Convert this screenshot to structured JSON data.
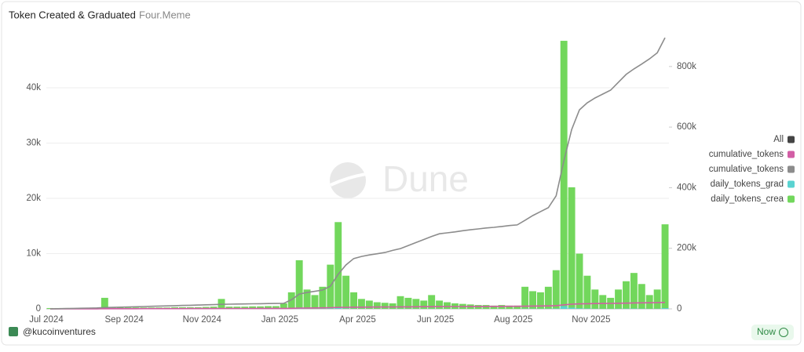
{
  "chart_data": {
    "type": "combo",
    "title": "Token Created & Graduated",
    "subtitle": "Four.Meme",
    "watermark": "Dune",
    "author": "@kucoinventures",
    "refresh_label": "Now",
    "legend_all": "All",
    "categories": [
      "Jul 2024",
      null,
      null,
      null,
      null,
      null,
      null,
      null,
      null,
      null,
      "Sep 2024",
      null,
      null,
      null,
      null,
      null,
      null,
      null,
      null,
      null,
      "Nov 2024",
      null,
      null,
      null,
      null,
      null,
      null,
      null,
      null,
      null,
      "Jan 2025",
      null,
      null,
      null,
      null,
      null,
      null,
      null,
      null,
      null,
      "Apr 2025",
      null,
      null,
      null,
      null,
      null,
      null,
      null,
      null,
      null,
      "Jun 2025",
      null,
      null,
      null,
      null,
      null,
      null,
      null,
      null,
      null,
      "Aug 2025",
      null,
      null,
      null,
      null,
      null,
      null,
      null,
      null,
      null,
      "Nov 2025",
      null,
      null,
      null,
      null,
      null,
      null,
      null,
      null,
      null
    ],
    "ylim": [
      0,
      49500
    ],
    "yticks": [
      0,
      {
        "value": 10000,
        "label": "10k"
      },
      {
        "value": 20000,
        "label": "20k"
      },
      {
        "value": 30000,
        "label": "30k"
      },
      {
        "value": 40000,
        "label": "40k"
      }
    ],
    "y2lim": [
      0,
      903000
    ],
    "y2ticks": [
      0,
      {
        "value": 200000,
        "label": "200k"
      },
      {
        "value": 400000,
        "label": "400k"
      },
      {
        "value": 600000,
        "label": "600k"
      },
      {
        "value": 800000,
        "label": "800k"
      }
    ],
    "grid": true,
    "legend_position": "right",
    "series": [
      {
        "name": "cumulative_tokens",
        "type": "line",
        "axis": "y2",
        "color": "#d25ea5",
        "values": [
          0,
          50,
          100,
          150,
          200,
          250,
          300,
          400,
          450,
          500,
          550,
          600,
          650,
          700,
          750,
          800,
          850,
          900,
          950,
          1000,
          1050,
          1100,
          1200,
          1250,
          1300,
          1350,
          1400,
          1450,
          1500,
          1550,
          1600,
          1900,
          2500,
          2800,
          3000,
          3300,
          3800,
          4800,
          5300,
          5600,
          5800,
          6000,
          6150,
          6300,
          6450,
          6650,
          6850,
          7000,
          7150,
          7300,
          7500,
          7650,
          7750,
          7850,
          7950,
          8050,
          8150,
          8250,
          8350,
          8450,
          8500,
          8900,
          9200,
          9500,
          9900,
          10500,
          13500,
          15500,
          16500,
          17100,
          17500,
          17800,
          18100,
          18500,
          19000,
          19600,
          20000,
          20300,
          20600,
          21500
        ]
      },
      {
        "name": "cumulative_tokens",
        "type": "line",
        "axis": "y2",
        "color": "#8c8c8c",
        "values": [
          0,
          500,
          1000,
          1500,
          2000,
          2500,
          3000,
          4500,
          5000,
          5700,
          6400,
          7100,
          7800,
          8500,
          9200,
          9900,
          10600,
          11300,
          12000,
          12700,
          13400,
          14000,
          15000,
          15500,
          16000,
          16400,
          16800,
          17200,
          17500,
          17800,
          18000,
          30000,
          49000,
          54000,
          58000,
          62000,
          75000,
          114000,
          145000,
          166000,
          173000,
          178000,
          182000,
          186000,
          193000,
          199000,
          209000,
          219000,
          229000,
          239000,
          248000,
          251000,
          254000,
          258000,
          261000,
          264000,
          267000,
          269000,
          272000,
          275000,
          277000,
          292000,
          308000,
          321000,
          334000,
          373000,
          489000,
          592000,
          657000,
          680000,
          696000,
          709000,
          722000,
          748000,
          774000,
          792000,
          808000,
          825000,
          845000,
          895000
        ]
      },
      {
        "name": "daily_tokens_grad",
        "type": "bar",
        "color": "#5ad3d1",
        "values": [
          2,
          2,
          2,
          2,
          2,
          2,
          2,
          20,
          3,
          3,
          3,
          3,
          3,
          3,
          3,
          3,
          3,
          3,
          3,
          3,
          3,
          3,
          18,
          4,
          4,
          4,
          4,
          4,
          4,
          4,
          10,
          30,
          90,
          35,
          25,
          40,
          80,
          160,
          60,
          30,
          18,
          15,
          12,
          11,
          10,
          23,
          20,
          18,
          15,
          25,
          15,
          12,
          10,
          9,
          8,
          7,
          7,
          6,
          7,
          6,
          6,
          40,
          32,
          30,
          40,
          70,
          480,
          220,
          100,
          60,
          35,
          25,
          20,
          35,
          50,
          65,
          45,
          25,
          35,
          150
        ]
      },
      {
        "name": "daily_tokens_crea",
        "type": "bar",
        "color": "#72d75c",
        "values": [
          150,
          150,
          150,
          150,
          150,
          150,
          200,
          2000,
          300,
          300,
          250,
          250,
          250,
          250,
          250,
          250,
          300,
          300,
          300,
          300,
          350,
          400,
          1800,
          400,
          400,
          400,
          450,
          450,
          500,
          500,
          1000,
          3000,
          8800,
          3500,
          2500,
          4000,
          8000,
          15700,
          6000,
          3000,
          1800,
          1500,
          1200,
          1100,
          1000,
          2300,
          2000,
          1800,
          1500,
          2500,
          1500,
          1200,
          1000,
          900,
          800,
          700,
          700,
          600,
          700,
          600,
          600,
          4000,
          3200,
          3000,
          4000,
          7000,
          48500,
          22000,
          10000,
          6000,
          3500,
          2500,
          2000,
          3500,
          5000,
          6500,
          4500,
          2500,
          3500,
          15300
        ]
      }
    ]
  }
}
